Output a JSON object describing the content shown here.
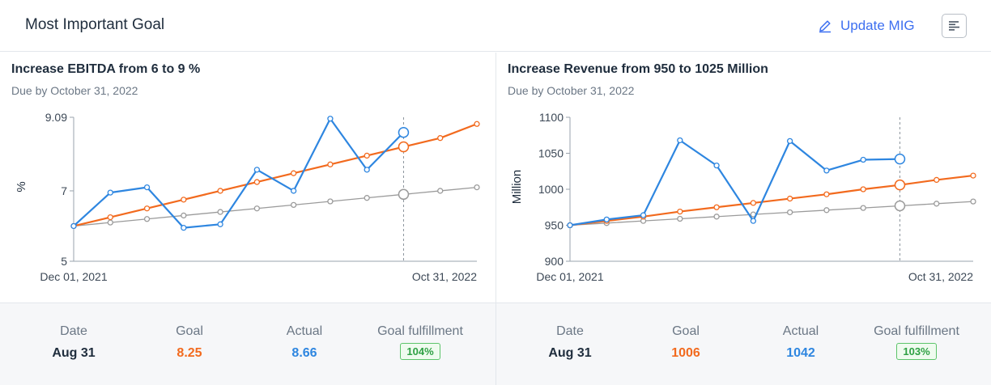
{
  "header": {
    "title": "Most Important Goal",
    "update_label": "Update MIG",
    "colors": {
      "accent": "#3d6ff0"
    }
  },
  "panels": [
    {
      "title": "Increase EBITDA from 6 to 9 %",
      "due": "Due by October 31, 2022",
      "footer": {
        "date_label": "Date",
        "goal_label": "Goal",
        "actual_label": "Actual",
        "fulfillment_label": "Goal fulfillment",
        "date": "Aug 31",
        "goal": "8.25",
        "actual": "8.66",
        "fulfillment": "104%"
      }
    },
    {
      "title": "Increase Revenue from 950 to 1025 Million",
      "due": "Due by October 31, 2022",
      "footer": {
        "date_label": "Date",
        "goal_label": "Goal",
        "actual_label": "Actual",
        "fulfillment_label": "Goal fulfillment",
        "date": "Aug 31",
        "goal": "1006",
        "actual": "1042",
        "fulfillment": "103%"
      }
    }
  ],
  "chart_data": [
    {
      "type": "line",
      "ylabel": "%",
      "ylim": [
        5,
        9.09
      ],
      "yticks": [
        "9.09",
        "7",
        "5"
      ],
      "ytick_values": [
        9.09,
        7,
        5
      ],
      "x_start_label": "Dec 01, 2021",
      "x_end_label": "Oct 31, 2022",
      "n_points": 12,
      "marker_index": 9,
      "series": [
        {
          "color": "#9b9b9b",
          "values": [
            6.0,
            6.1,
            6.2,
            6.3,
            6.4,
            6.5,
            6.6,
            6.7,
            6.8,
            6.9,
            7.0,
            7.1
          ]
        },
        {
          "color": "#f26a1e",
          "values": [
            6.0,
            6.25,
            6.5,
            6.75,
            7.0,
            7.25,
            7.5,
            7.75,
            8.0,
            8.25,
            8.5,
            8.9
          ]
        },
        {
          "color": "#2e86e0",
          "values": [
            6.0,
            6.95,
            7.1,
            5.95,
            6.05,
            7.6,
            7.0,
            9.05,
            7.6,
            8.66
          ]
        }
      ]
    },
    {
      "type": "line",
      "ylabel": "Million",
      "ylim": [
        900,
        1100
      ],
      "yticks": [
        "1100",
        "1050",
        "1000",
        "950",
        "900"
      ],
      "ytick_values": [
        1100,
        1050,
        1000,
        950,
        900
      ],
      "x_start_label": "Dec 01, 2021",
      "x_end_label": "Oct 31, 2022",
      "n_points": 12,
      "marker_index": 9,
      "series": [
        {
          "color": "#9b9b9b",
          "values": [
            950,
            953,
            956,
            959,
            962,
            965,
            968,
            971,
            974,
            977,
            980,
            983
          ]
        },
        {
          "color": "#f26a1e",
          "values": [
            950,
            956,
            962,
            969,
            975,
            981,
            987,
            993,
            1000,
            1006,
            1013,
            1019
          ]
        },
        {
          "color": "#2e86e0",
          "values": [
            950,
            958,
            964,
            1068,
            1033,
            956,
            1067,
            1026,
            1041,
            1042
          ]
        }
      ]
    }
  ]
}
